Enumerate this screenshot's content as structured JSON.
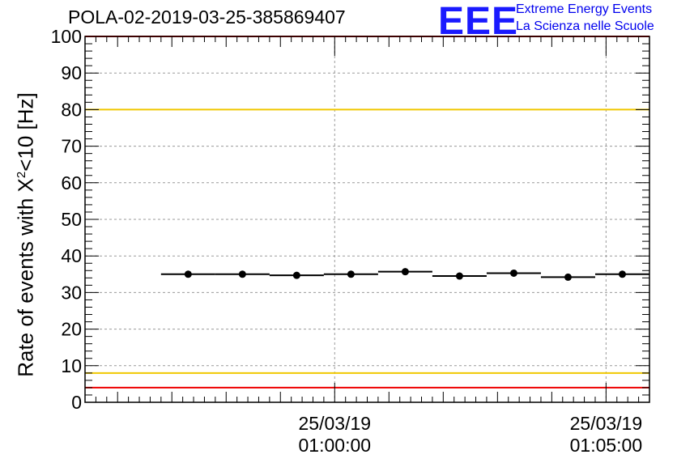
{
  "header": {
    "title": "POLA-02-2019-03-25-385869407",
    "logo_text": "EEE",
    "logo_line1": "Extreme Energy Events",
    "logo_line2": "La Scienza nelle Scuole"
  },
  "axis": {
    "ylabel_main": "Rate of events with X",
    "ylabel_sup": "2",
    "ylabel_tail": "<10 [Hz]"
  },
  "chart_data": {
    "type": "scatter",
    "title": "POLA-02-2019-03-25-385869407",
    "xlabel": "",
    "ylabel": "Rate of events with X^2<10 [Hz]",
    "x_unit": "minutes relative to 25/03/19 01:00:00",
    "xlim": [
      -4.6,
      5.8
    ],
    "ylim": [
      0,
      100
    ],
    "y_ticks": [
      0,
      10,
      20,
      30,
      40,
      50,
      60,
      70,
      80,
      90,
      100
    ],
    "x_ticks": [
      {
        "x": 0,
        "date": "25/03/19",
        "time": "01:00:00"
      },
      {
        "x": 5,
        "date": "25/03/19",
        "time": "01:05:00"
      }
    ],
    "grid": true,
    "points": [
      {
        "x": -2.7,
        "x_lo": -3.2,
        "x_hi": -2.2,
        "y": 35.0
      },
      {
        "x": -1.7,
        "x_lo": -2.2,
        "x_hi": -1.2,
        "y": 35.0
      },
      {
        "x": -0.7,
        "x_lo": -1.2,
        "x_hi": -0.2,
        "y": 34.7
      },
      {
        "x": 0.3,
        "x_lo": -0.2,
        "x_hi": 0.8,
        "y": 35.0
      },
      {
        "x": 1.3,
        "x_lo": 0.8,
        "x_hi": 1.8,
        "y": 35.7
      },
      {
        "x": 2.3,
        "x_lo": 1.8,
        "x_hi": 2.8,
        "y": 34.5
      },
      {
        "x": 3.3,
        "x_lo": 2.8,
        "x_hi": 3.8,
        "y": 35.3
      },
      {
        "x": 4.3,
        "x_lo": 3.8,
        "x_hi": 4.8,
        "y": 34.2
      },
      {
        "x": 5.3,
        "x_lo": 4.8,
        "x_hi": 5.8,
        "y": 35.0
      }
    ],
    "reference_lines": [
      {
        "y": 100,
        "color": "#ee0000"
      },
      {
        "y": 80,
        "color": "#f0c800"
      },
      {
        "y": 8,
        "color": "#f0c800"
      },
      {
        "y": 4,
        "color": "#ee0000"
      }
    ]
  }
}
